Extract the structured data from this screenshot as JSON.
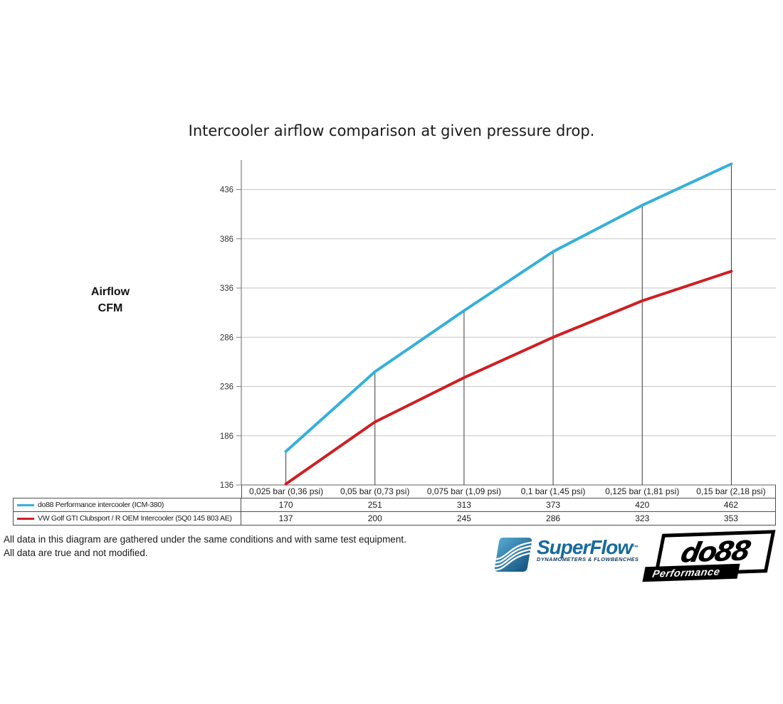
{
  "title": "Intercooler airflow comparison at given pressure drop.",
  "y_axis_label": {
    "line1": "Airflow",
    "line2": "CFM"
  },
  "chart_data": {
    "type": "line",
    "title": "Intercooler airflow comparison at given pressure drop.",
    "ylabel": "Airflow CFM",
    "xlabel": "",
    "categories": [
      "0,025 bar (0,36 psi)",
      "0,05 bar (0,73 psi)",
      "0,075 bar (1,09 psi)",
      "0,1 bar (1,45 psi)",
      "0,125 bar (1,81 psi)",
      "0,15 bar (2,18 psi)"
    ],
    "series": [
      {
        "name": "do88 Performance intercooler (ICM-380)",
        "color": "#36b0d9",
        "values": [
          170,
          251,
          313,
          373,
          420,
          462
        ]
      },
      {
        "name": "VW Golf GTI Clubsport / R OEM Intercooler (5Q0 145 803 AE)",
        "color": "#cd2025",
        "values": [
          137,
          200,
          245,
          286,
          323,
          353
        ]
      }
    ],
    "yticks": [
      136,
      186,
      236,
      286,
      336,
      386,
      436
    ],
    "ylim": [
      136,
      466
    ],
    "grid": true,
    "droplines": true,
    "legend_position": "table-left",
    "colors": {
      "gridline": "#c6c6c6",
      "axis": "#808080",
      "dropline": "#3a3a3a",
      "table_border": "#4f4f4f"
    }
  },
  "footer": {
    "line1": "All data in this diagram are gathered under the same conditions and with same test equipment.",
    "line2": "All data are true and not modified."
  },
  "logos": {
    "superflow": {
      "wordmark": "SuperFlow",
      "tm": "™",
      "subtitle": "DYNAMOMETERS & FLOWBENCHES",
      "color": "#176a9e"
    },
    "do88": {
      "wordmark": "do88",
      "subtitle": "Performance",
      "color": "#000000"
    }
  }
}
